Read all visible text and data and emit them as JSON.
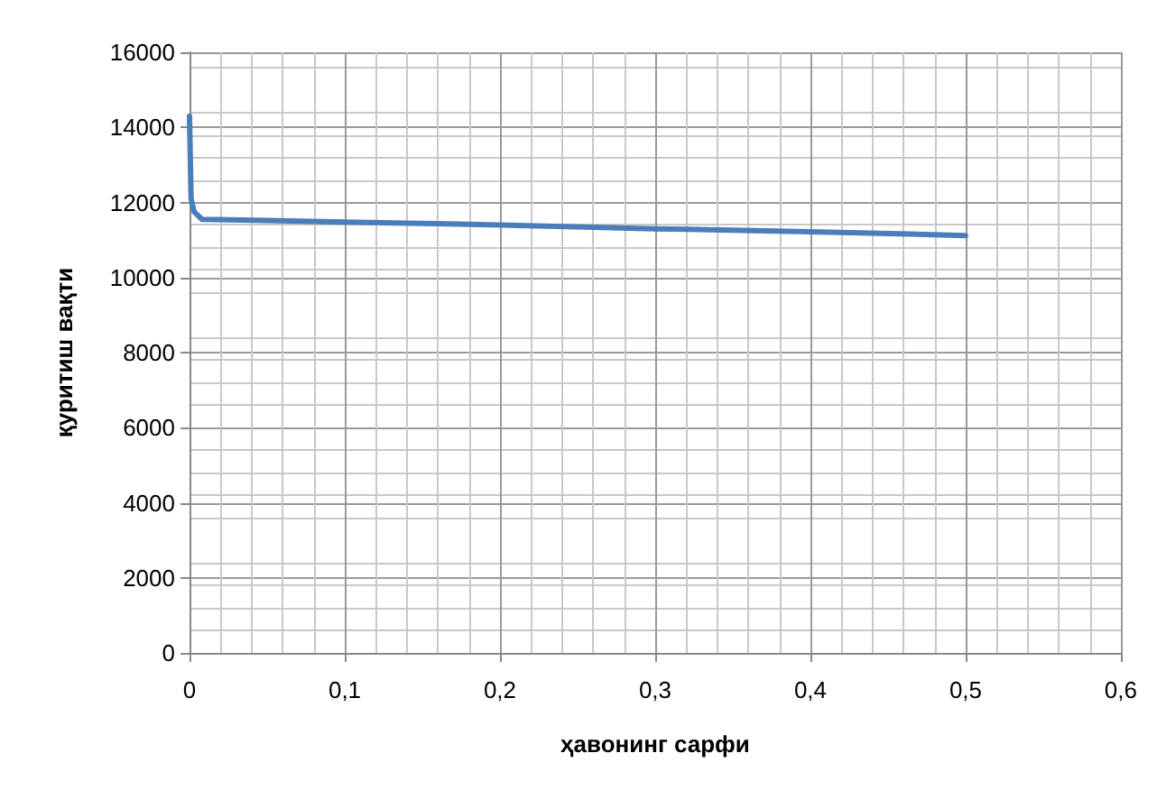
{
  "chart_data": {
    "type": "line",
    "xlabel": "ҳавонинг сарфи",
    "ylabel": "қуритиш вақти",
    "x": [
      0,
      0.001,
      0.003,
      0.008,
      0.05,
      0.1,
      0.2,
      0.3,
      0.4,
      0.5
    ],
    "series": [
      {
        "color": "#4a7ebb",
        "values": [
          14300,
          12100,
          11750,
          11550,
          11520,
          11480,
          11400,
          11300,
          11220,
          11120
        ]
      }
    ],
    "xlim": [
      0,
      0.6
    ],
    "xticks": [
      0,
      {
        "value": 0.1,
        "label": "0,1"
      },
      {
        "value": 0.2,
        "label": "0,2"
      },
      {
        "value": 0.3,
        "label": "0,3"
      },
      {
        "value": 0.4,
        "label": "0,4"
      },
      {
        "value": 0.5,
        "label": "0,5"
      },
      {
        "value": 0.6,
        "label": "0,6"
      }
    ],
    "ylim": [
      0,
      16000
    ],
    "yticks": [
      0,
      2000,
      4000,
      6000,
      8000,
      10000,
      12000,
      14000,
      16000
    ],
    "grid": true,
    "marker": "none",
    "line_style": "solid"
  }
}
